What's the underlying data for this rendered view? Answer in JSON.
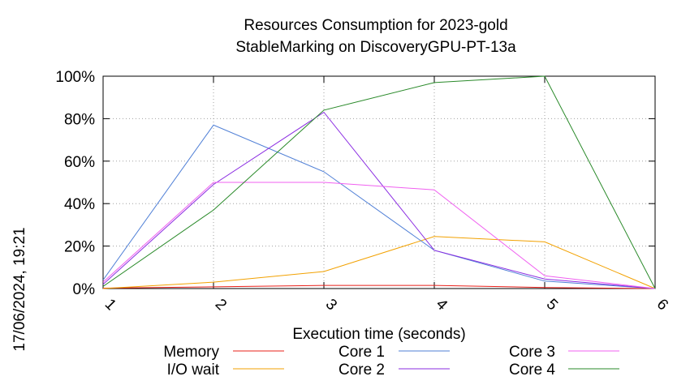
{
  "chart_data": {
    "type": "line",
    "title": "Resources Consumption for 2023-gold",
    "subtitle": "StableMarking on DiscoveryGPU-PT-13a",
    "xlabel": "Execution time (seconds)",
    "ylabel": "",
    "side_label": "17/06/2024, 19:21",
    "x": [
      1,
      2,
      3,
      4,
      5,
      6
    ],
    "xlim": [
      1,
      6
    ],
    "ylim": [
      0,
      100
    ],
    "x_ticks": [
      "1",
      "2",
      "3",
      "4",
      "5",
      "6"
    ],
    "y_ticks": [
      "0%",
      "20%",
      "40%",
      "60%",
      "80%",
      "100%"
    ],
    "y_tick_values": [
      0,
      20,
      40,
      60,
      80,
      100
    ],
    "grid": true,
    "legend_position": "bottom",
    "series": [
      {
        "name": "Memory",
        "color": "#e8201a",
        "values": [
          0.2,
          0.8,
          1.5,
          1.5,
          0.5,
          0
        ]
      },
      {
        "name": "I/O wait",
        "color": "#f2a100",
        "values": [
          0,
          3,
          8,
          24.5,
          22,
          0
        ]
      },
      {
        "name": "Core 1",
        "color": "#4f7fd6",
        "values": [
          4,
          77,
          55,
          18,
          3.5,
          0
        ]
      },
      {
        "name": "Core 2",
        "color": "#8a2be2",
        "values": [
          2,
          49,
          83,
          18,
          4.5,
          0
        ]
      },
      {
        "name": "Core 3",
        "color": "#f060f0",
        "values": [
          3,
          50,
          50,
          46.5,
          6,
          0
        ]
      },
      {
        "name": "Core 4",
        "color": "#2a8a2a",
        "values": [
          1,
          37,
          84,
          97,
          100,
          0
        ]
      }
    ]
  }
}
